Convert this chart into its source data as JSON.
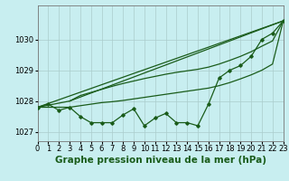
{
  "title": "Graphe pression niveau de la mer (hPa)",
  "background_color": "#c8eef0",
  "grid_color": "#aacccc",
  "line_color": "#1a5c1a",
  "x_values": [
    0,
    1,
    2,
    3,
    4,
    5,
    6,
    7,
    8,
    9,
    10,
    11,
    12,
    13,
    14,
    15,
    16,
    17,
    18,
    19,
    20,
    21,
    22,
    23
  ],
  "series_main": [
    1027.8,
    1027.9,
    1027.7,
    1027.8,
    1027.5,
    1027.3,
    1027.3,
    1027.3,
    1027.55,
    1027.75,
    1027.2,
    1027.45,
    1027.6,
    1027.3,
    1027.3,
    1027.2,
    1027.9,
    1028.75,
    1029.0,
    1029.15,
    1029.45,
    1030.0,
    1030.2,
    1030.6
  ],
  "line_straight_1": [
    0,
    23,
    1027.8,
    1030.6
  ],
  "line_straight_2": [
    3,
    23,
    1028.0,
    1030.6
  ],
  "series_upper": [
    0,
    3,
    4,
    5,
    6,
    7,
    8,
    9,
    10,
    11,
    12,
    13,
    14,
    15,
    16,
    17,
    18,
    19,
    20,
    21,
    22,
    23
  ],
  "series_upper_y": [
    1027.8,
    1028.0,
    1028.18,
    1028.28,
    1028.38,
    1028.48,
    1028.57,
    1028.65,
    1028.73,
    1028.8,
    1028.87,
    1028.93,
    1028.98,
    1029.03,
    1029.1,
    1029.2,
    1029.32,
    1029.45,
    1029.6,
    1029.78,
    1029.95,
    1030.6
  ],
  "series_lower": [
    0,
    3,
    4,
    5,
    6,
    7,
    8,
    9,
    10,
    11,
    12,
    13,
    14,
    15,
    16,
    17,
    18,
    19,
    20,
    21,
    22,
    23
  ],
  "series_lower_y": [
    1027.8,
    1027.8,
    1027.85,
    1027.9,
    1027.95,
    1027.98,
    1028.02,
    1028.07,
    1028.12,
    1028.17,
    1028.22,
    1028.27,
    1028.32,
    1028.37,
    1028.42,
    1028.5,
    1028.6,
    1028.72,
    1028.85,
    1029.0,
    1029.2,
    1030.6
  ],
  "ylim": [
    1026.7,
    1031.1
  ],
  "yticks": [
    1027,
    1028,
    1029,
    1030
  ],
  "xlim": [
    0,
    23
  ],
  "title_fontsize": 7.5,
  "tick_fontsize": 6
}
